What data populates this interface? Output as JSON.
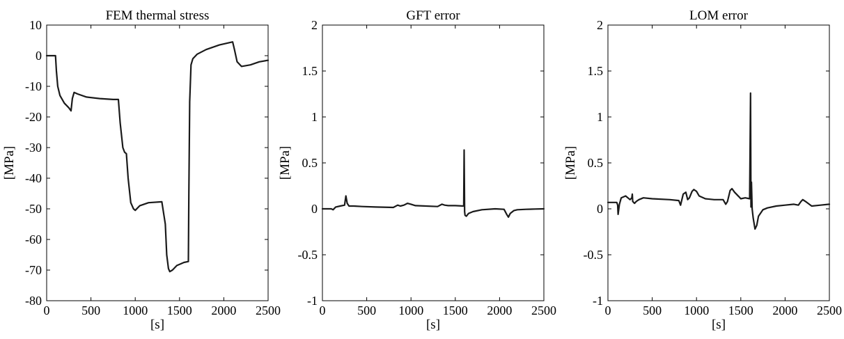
{
  "chart_data": [
    {
      "type": "line",
      "title": "FEM thermal stress",
      "xlabel": "[s]",
      "ylabel": "[MPa]",
      "xlim": [
        0,
        2500
      ],
      "ylim": [
        -80,
        10
      ],
      "xticks": [
        "0",
        "500",
        "1000",
        "1500",
        "2000",
        "2500"
      ],
      "yticks": [
        "10",
        "0",
        "-10",
        "-20",
        "-30",
        "-40",
        "-50",
        "-60",
        "-70",
        "-80"
      ],
      "grid": false,
      "series": [
        {
          "color": "#1a1a1a",
          "x": [
            0,
            100,
            110,
            125,
            150,
            200,
            250,
            275,
            290,
            310,
            350,
            450,
            600,
            750,
            810,
            830,
            860,
            880,
            900,
            920,
            950,
            980,
            1000,
            1050,
            1150,
            1300,
            1340,
            1355,
            1375,
            1390,
            1420,
            1470,
            1550,
            1600,
            1605,
            1615,
            1630,
            1650,
            1700,
            1800,
            1950,
            2100,
            2120,
            2150,
            2200,
            2300,
            2400,
            2500
          ],
          "y": [
            0,
            0,
            -5,
            -10,
            -13,
            -15.5,
            -17,
            -18,
            -14,
            -12,
            -12.5,
            -13.5,
            -14,
            -14.3,
            -14.3,
            -22,
            -30,
            -31.5,
            -32,
            -40,
            -48,
            -50,
            -50.5,
            -49,
            -48,
            -47.7,
            -55,
            -65,
            -69.5,
            -70.5,
            -70,
            -68.5,
            -67.5,
            -67.2,
            -45,
            -15,
            -3,
            -1,
            0.5,
            2,
            3.5,
            4.5,
            2,
            -2,
            -3.5,
            -3,
            -2,
            -1.5
          ]
        }
      ]
    },
    {
      "type": "line",
      "title": "GFT error",
      "xlabel": "[s]",
      "ylabel": "[MPa]",
      "xlim": [
        0,
        2500
      ],
      "ylim": [
        -1,
        2
      ],
      "xticks": [
        "0",
        "500",
        "1000",
        "1500",
        "2000",
        "2500"
      ],
      "yticks": [
        "2",
        "1.5",
        "1",
        "0.5",
        "0",
        "-0.5",
        "-1"
      ],
      "grid": false,
      "series": [
        {
          "color": "#1a1a1a",
          "x": [
            0,
            100,
            120,
            150,
            200,
            250,
            265,
            280,
            300,
            350,
            450,
            600,
            800,
            850,
            880,
            920,
            960,
            1000,
            1050,
            1300,
            1350,
            1380,
            1420,
            1500,
            1595,
            1600,
            1605,
            1610,
            1625,
            1650,
            1700,
            1800,
            1950,
            2050,
            2080,
            2100,
            2120,
            2160,
            2200,
            2300,
            2400,
            2500
          ],
          "y": [
            0,
            0,
            -0.01,
            0.02,
            0.03,
            0.04,
            0.14,
            0.06,
            0.03,
            0.03,
            0.025,
            0.02,
            0.015,
            0.04,
            0.03,
            0.04,
            0.06,
            0.05,
            0.035,
            0.025,
            0.05,
            0.04,
            0.035,
            0.035,
            0.03,
            0.64,
            -0.03,
            -0.07,
            -0.08,
            -0.05,
            -0.03,
            -0.01,
            0,
            -0.005,
            -0.06,
            -0.09,
            -0.05,
            -0.02,
            -0.01,
            -0.005,
            -0.002,
            0
          ]
        }
      ]
    },
    {
      "type": "line",
      "title": "LOM error",
      "xlabel": "[s]",
      "ylabel": "[MPa]",
      "xlim": [
        0,
        2500
      ],
      "ylim": [
        -1,
        2
      ],
      "xticks": [
        "0",
        "500",
        "1000",
        "1500",
        "2000",
        "2500"
      ],
      "yticks": [
        "2",
        "1.5",
        "1",
        "0.5",
        "0",
        "-0.5",
        "-1"
      ],
      "grid": false,
      "series": [
        {
          "color": "#1a1a1a",
          "x": [
            0,
            100,
            110,
            115,
            130,
            150,
            200,
            250,
            270,
            275,
            280,
            300,
            320,
            350,
            400,
            500,
            700,
            800,
            820,
            850,
            880,
            900,
            920,
            950,
            970,
            1000,
            1030,
            1100,
            1200,
            1300,
            1330,
            1350,
            1380,
            1400,
            1430,
            1480,
            1500,
            1550,
            1600,
            1610,
            1615,
            1620,
            1628,
            1640,
            1660,
            1680,
            1700,
            1750,
            1800,
            1900,
            2000,
            2100,
            2150,
            2180,
            2200,
            2230,
            2300,
            2400,
            2500
          ],
          "y": [
            0.07,
            0.07,
            0.04,
            -0.06,
            0.05,
            0.12,
            0.14,
            0.1,
            0.12,
            0.16,
            0.08,
            0.06,
            0.08,
            0.1,
            0.12,
            0.11,
            0.1,
            0.09,
            0.04,
            0.16,
            0.18,
            0.1,
            0.12,
            0.19,
            0.21,
            0.19,
            0.14,
            0.11,
            0.1,
            0.1,
            0.05,
            0.08,
            0.2,
            0.22,
            0.18,
            0.13,
            0.11,
            0.12,
            0.11,
            1.26,
            0.02,
            0.29,
            0,
            -0.1,
            -0.22,
            -0.18,
            -0.08,
            -0.01,
            0.01,
            0.03,
            0.04,
            0.05,
            0.04,
            0.08,
            0.1,
            0.08,
            0.03,
            0.04,
            0.05
          ]
        }
      ]
    }
  ]
}
